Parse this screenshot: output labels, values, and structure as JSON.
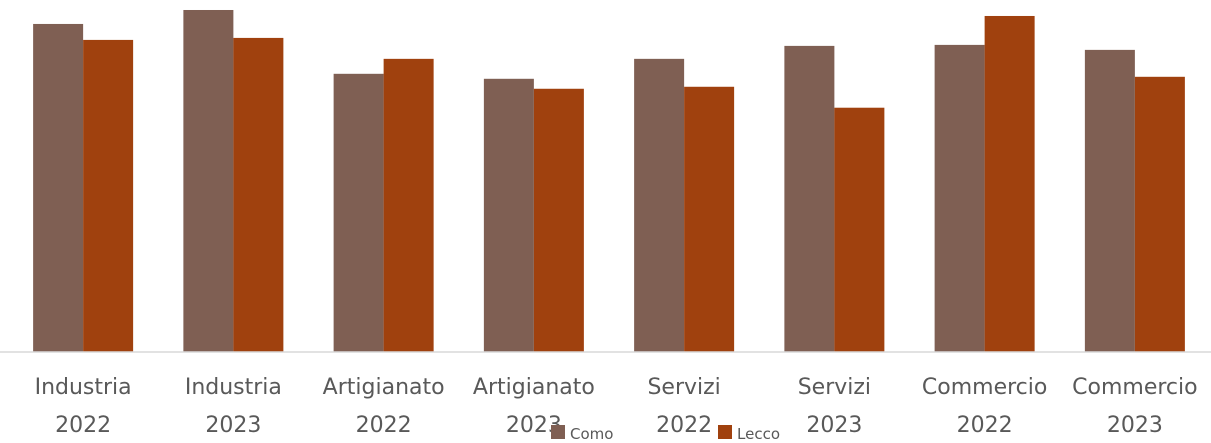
{
  "chart_data": {
    "type": "bar",
    "title": "",
    "xlabel": "",
    "ylabel": "",
    "categories": [
      [
        "Industria",
        "2022"
      ],
      [
        "Industria",
        "2023"
      ],
      [
        "Artigianato",
        "2022"
      ],
      [
        "Artigianato",
        "2023"
      ],
      [
        "Servizi",
        "2022"
      ],
      [
        "Servizi",
        "2023"
      ],
      [
        "Commercio",
        "2022"
      ],
      [
        "Commercio",
        "2023"
      ]
    ],
    "series": [
      {
        "name": "Como",
        "color": "#7f5f53",
        "values": [
          329,
          343,
          279,
          274,
          294,
          307,
          308,
          303
        ]
      },
      {
        "name": "Lecco",
        "color": "#a0410e",
        "values": [
          313,
          315,
          294,
          264,
          266,
          245,
          337,
          276
        ]
      }
    ],
    "ylim": [
      0,
      345
    ],
    "grid": false,
    "legend": "bottom"
  }
}
